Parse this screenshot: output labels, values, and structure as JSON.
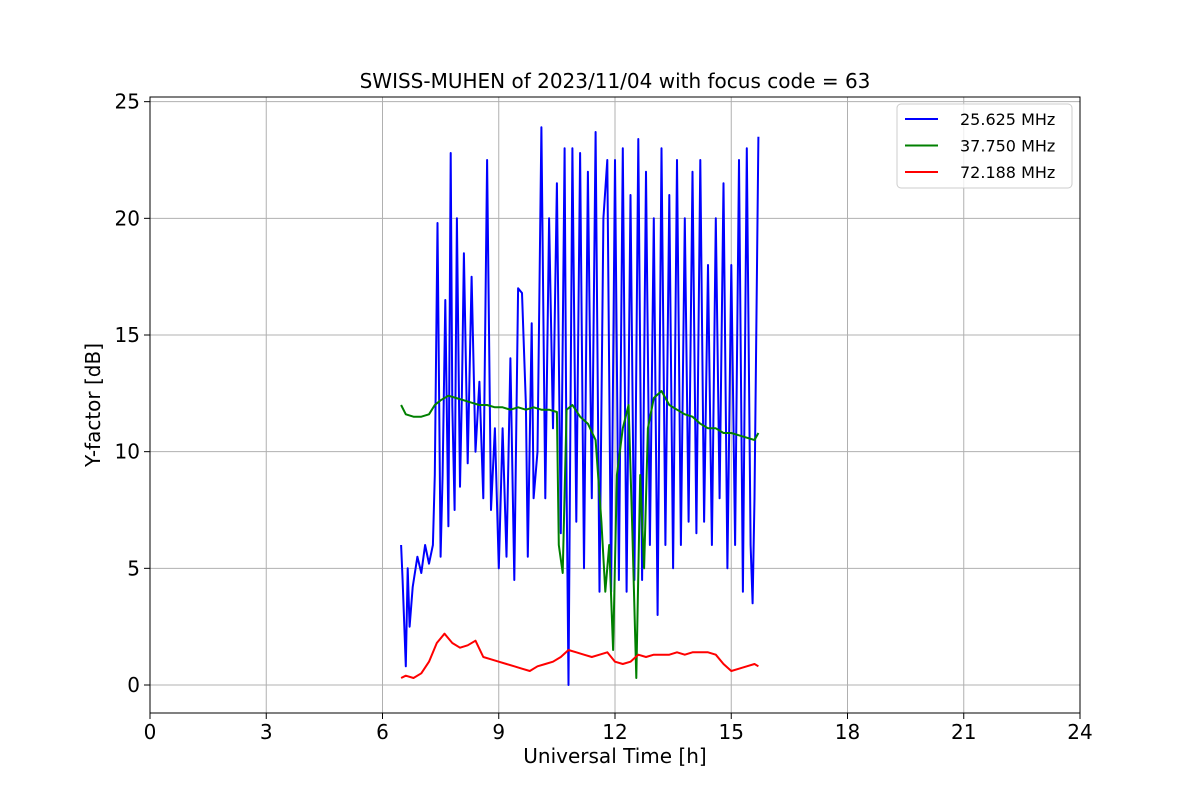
{
  "chart_data": {
    "type": "line",
    "title": "SWISS-MUHEN of 2023/11/04 with focus code = 63",
    "xlabel": "Universal Time [h]",
    "ylabel": "Y-factor [dB]",
    "xlim": [
      0,
      24
    ],
    "ylim": [
      -1.2,
      25.2
    ],
    "xticks": [
      0,
      3,
      6,
      9,
      12,
      15,
      18,
      21,
      24
    ],
    "yticks": [
      0,
      5,
      10,
      15,
      20,
      25
    ],
    "grid": true,
    "legend_position": "top-right",
    "series": [
      {
        "name": "25.625 MHz",
        "color": "#0000ff",
        "x": [
          6.48,
          6.52,
          6.6,
          6.65,
          6.7,
          6.78,
          6.9,
          7.0,
          7.1,
          7.2,
          7.3,
          7.35,
          7.42,
          7.5,
          7.55,
          7.62,
          7.7,
          7.76,
          7.8,
          7.86,
          7.92,
          8.0,
          8.05,
          8.1,
          8.2,
          8.3,
          8.4,
          8.5,
          8.6,
          8.7,
          8.8,
          8.9,
          9.0,
          9.1,
          9.2,
          9.3,
          9.4,
          9.5,
          9.6,
          9.7,
          9.75,
          9.85,
          9.9,
          10.0,
          10.1,
          10.2,
          10.3,
          10.4,
          10.5,
          10.6,
          10.7,
          10.75,
          10.8,
          10.9,
          11.0,
          11.1,
          11.2,
          11.3,
          11.4,
          11.5,
          11.6,
          11.7,
          11.8,
          11.9,
          12.0,
          12.1,
          12.2,
          12.3,
          12.4,
          12.5,
          12.6,
          12.7,
          12.8,
          12.9,
          13.0,
          13.1,
          13.2,
          13.3,
          13.4,
          13.5,
          13.6,
          13.7,
          13.8,
          13.9,
          14.0,
          14.1,
          14.2,
          14.3,
          14.4,
          14.5,
          14.6,
          14.7,
          14.8,
          14.9,
          15.0,
          15.1,
          15.2,
          15.3,
          15.4,
          15.5,
          15.55,
          15.6,
          15.7
        ],
        "y": [
          6.0,
          4.5,
          0.8,
          5.0,
          2.5,
          4.2,
          5.5,
          4.8,
          6.0,
          5.2,
          6.0,
          9.0,
          19.8,
          5.5,
          9.0,
          16.5,
          6.8,
          22.8,
          12.0,
          7.5,
          20.0,
          8.5,
          12.5,
          18.5,
          9.5,
          17.5,
          10.0,
          13.0,
          8.0,
          22.5,
          7.5,
          11.0,
          5.0,
          11.0,
          5.5,
          14.0,
          4.5,
          17.0,
          16.8,
          12.0,
          5.5,
          15.5,
          8.0,
          10.0,
          23.9,
          8.0,
          20.0,
          11.0,
          21.5,
          6.5,
          23.0,
          8.5,
          0.0,
          23.0,
          7.0,
          22.8,
          5.0,
          22.0,
          8.0,
          23.7,
          4.0,
          20.0,
          22.5,
          4.0,
          22.5,
          4.5,
          23.0,
          4.0,
          21.0,
          4.5,
          23.4,
          4.5,
          22.0,
          6.0,
          20.0,
          3.0,
          23.0,
          6.0,
          21.0,
          5.0,
          22.5,
          6.0,
          20.0,
          7.0,
          22.0,
          6.5,
          22.5,
          7.0,
          18.0,
          6.0,
          20.0,
          8.0,
          21.5,
          5.0,
          18.0,
          6.0,
          22.5,
          4.0,
          23.0,
          6.0,
          3.5,
          8.0,
          23.5
        ]
      },
      {
        "name": "37.750 MHz",
        "color": "#008000",
        "x": [
          6.48,
          6.6,
          6.8,
          7.0,
          7.2,
          7.35,
          7.5,
          7.7,
          7.9,
          8.1,
          8.3,
          8.5,
          8.7,
          8.9,
          9.1,
          9.3,
          9.5,
          9.7,
          9.9,
          10.1,
          10.3,
          10.5,
          10.55,
          10.65,
          10.75,
          10.9,
          11.1,
          11.3,
          11.5,
          11.65,
          11.75,
          11.85,
          11.95,
          12.05,
          12.2,
          12.35,
          12.45,
          12.55,
          12.65,
          12.75,
          12.85,
          13.0,
          13.2,
          13.4,
          13.6,
          13.8,
          14.0,
          14.2,
          14.4,
          14.6,
          14.8,
          15.0,
          15.2,
          15.4,
          15.6,
          15.7
        ],
        "y": [
          12.0,
          11.6,
          11.5,
          11.5,
          11.6,
          12.0,
          12.2,
          12.4,
          12.3,
          12.2,
          12.1,
          12.0,
          12.0,
          11.9,
          11.9,
          11.8,
          11.9,
          11.8,
          11.9,
          11.8,
          11.8,
          11.7,
          6.0,
          4.8,
          11.8,
          12.0,
          11.5,
          11.2,
          10.5,
          7.0,
          4.0,
          6.0,
          1.5,
          9.0,
          11.0,
          12.0,
          6.5,
          0.3,
          9.0,
          5.0,
          11.0,
          12.3,
          12.6,
          12.0,
          11.8,
          11.6,
          11.5,
          11.2,
          11.0,
          11.0,
          10.8,
          10.8,
          10.7,
          10.6,
          10.5,
          10.8
        ]
      },
      {
        "name": "72.188 MHz",
        "color": "#ff0000",
        "x": [
          6.48,
          6.6,
          6.8,
          7.0,
          7.2,
          7.4,
          7.6,
          7.8,
          8.0,
          8.2,
          8.4,
          8.6,
          8.8,
          9.0,
          9.2,
          9.4,
          9.6,
          9.8,
          10.0,
          10.2,
          10.4,
          10.6,
          10.8,
          11.0,
          11.2,
          11.4,
          11.6,
          11.8,
          12.0,
          12.2,
          12.4,
          12.6,
          12.8,
          13.0,
          13.2,
          13.4,
          13.6,
          13.8,
          14.0,
          14.2,
          14.4,
          14.6,
          14.8,
          15.0,
          15.2,
          15.4,
          15.6,
          15.7
        ],
        "y": [
          0.3,
          0.4,
          0.3,
          0.5,
          1.0,
          1.8,
          2.2,
          1.8,
          1.6,
          1.7,
          1.9,
          1.2,
          1.1,
          1.0,
          0.9,
          0.8,
          0.7,
          0.6,
          0.8,
          0.9,
          1.0,
          1.2,
          1.5,
          1.4,
          1.3,
          1.2,
          1.3,
          1.4,
          1.0,
          0.9,
          1.0,
          1.3,
          1.2,
          1.3,
          1.3,
          1.3,
          1.4,
          1.3,
          1.4,
          1.4,
          1.4,
          1.3,
          0.9,
          0.6,
          0.7,
          0.8,
          0.9,
          0.8
        ]
      }
    ]
  }
}
